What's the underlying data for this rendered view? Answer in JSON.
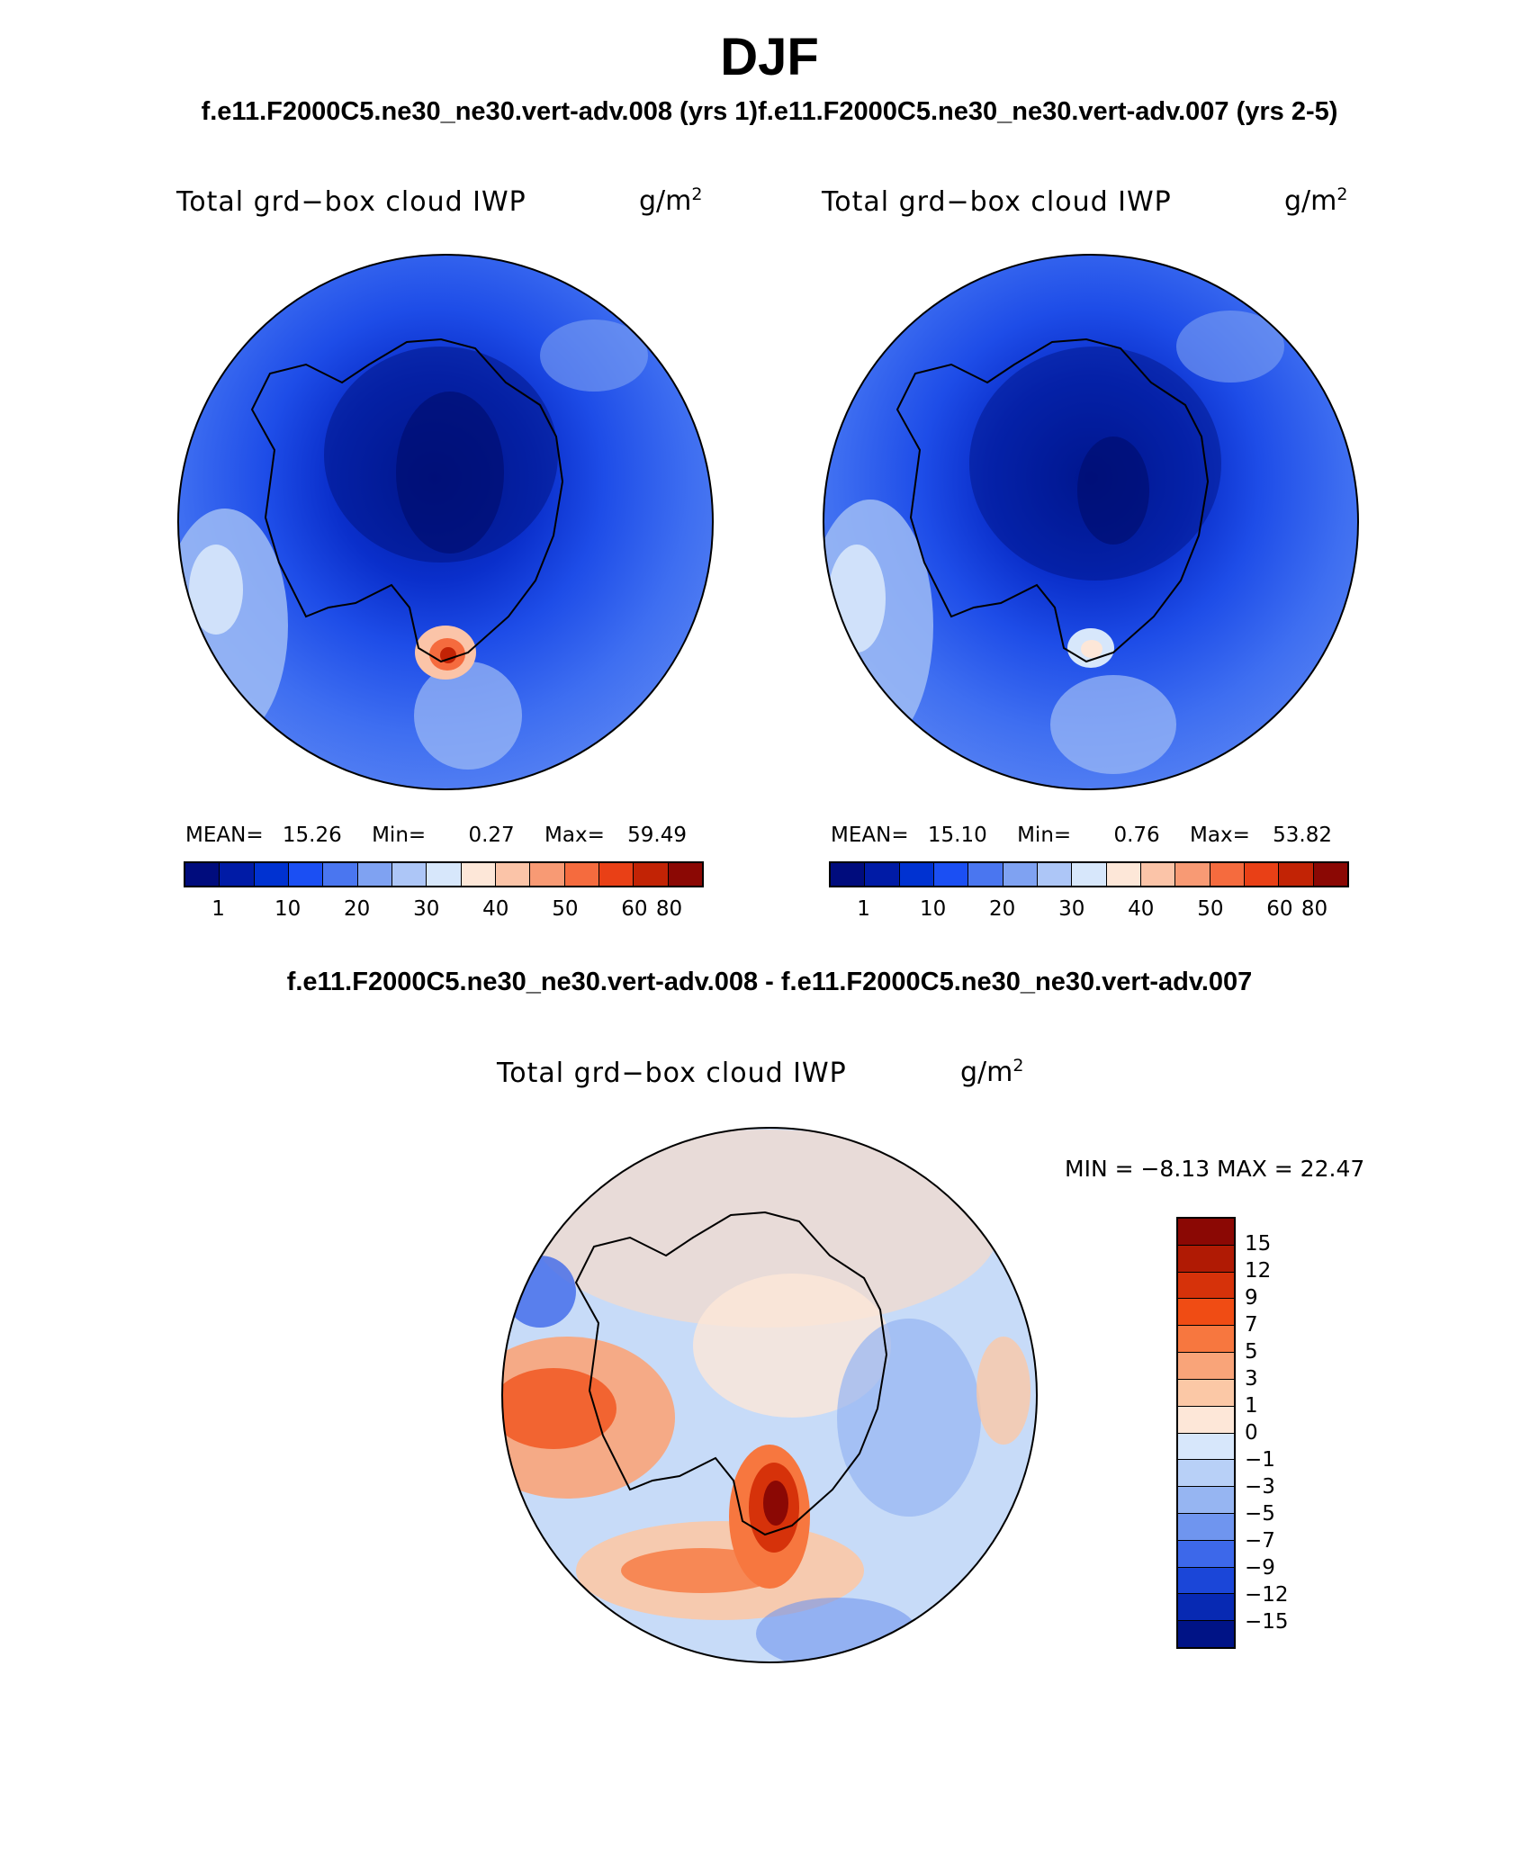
{
  "figure": {
    "season": "DJF",
    "case_title": "f.e11.F2000C5.ne30_ne30.vert-adv.008 (yrs 1)f.e11.F2000C5.ne30_ne30.vert-adv.007 (yrs 2-5)",
    "diff_title": "f.e11.F2000C5.ne30_ne30.vert-adv.008 - f.e11.F2000C5.ne30_ne30.vert-adv.007"
  },
  "panels": [
    {
      "title": "Total grd−box cloud IWP",
      "unit": "g/m",
      "unit_sup": "2",
      "stats": {
        "mean_label": "MEAN=",
        "mean": "15.26",
        "min_label": "Min=",
        "min": "0.27",
        "max_label": "Max=",
        "max": "59.49"
      }
    },
    {
      "title": "Total grd−box cloud IWP",
      "unit": "g/m",
      "unit_sup": "2",
      "stats": {
        "mean_label": "MEAN=",
        "mean": "15.10",
        "min_label": "Min=",
        "min": "0.76",
        "max_label": "Max=",
        "max": "53.82"
      }
    },
    {
      "title": "Total grd−box cloud IWP",
      "unit": "g/m",
      "unit_sup": "2",
      "minmax": "MIN =   −8.13 MAX =   22.47"
    }
  ],
  "colorbar_main": {
    "colors": [
      "#000c7d",
      "#001ba6",
      "#0032d1",
      "#1b4ff3",
      "#4a76f0",
      "#7fa2f2",
      "#adc6f7",
      "#d7e7fb",
      "#fde7d8",
      "#fbc4a8",
      "#f89a74",
      "#f56b3e",
      "#e94016",
      "#c22305",
      "#8b0804"
    ],
    "tick_labels": [
      "1",
      "10",
      "20",
      "30",
      "40",
      "50",
      "60",
      "80"
    ]
  },
  "colorbar_diff": {
    "colors": [
      "#8b0804",
      "#b01a04",
      "#d6320a",
      "#f04c14",
      "#f7773f",
      "#f9a479",
      "#fbc8a6",
      "#fde7d8",
      "#d7e7fb",
      "#b8d0f7",
      "#96b5f2",
      "#6f95ef",
      "#3d68ea",
      "#1b46d8",
      "#0729b3",
      "#001386"
    ],
    "tick_labels": [
      "15",
      "12",
      "9",
      "7",
      "5",
      "3",
      "1",
      "0",
      "−1",
      "−3",
      "−5",
      "−7",
      "−9",
      "−12",
      "−15"
    ]
  }
}
